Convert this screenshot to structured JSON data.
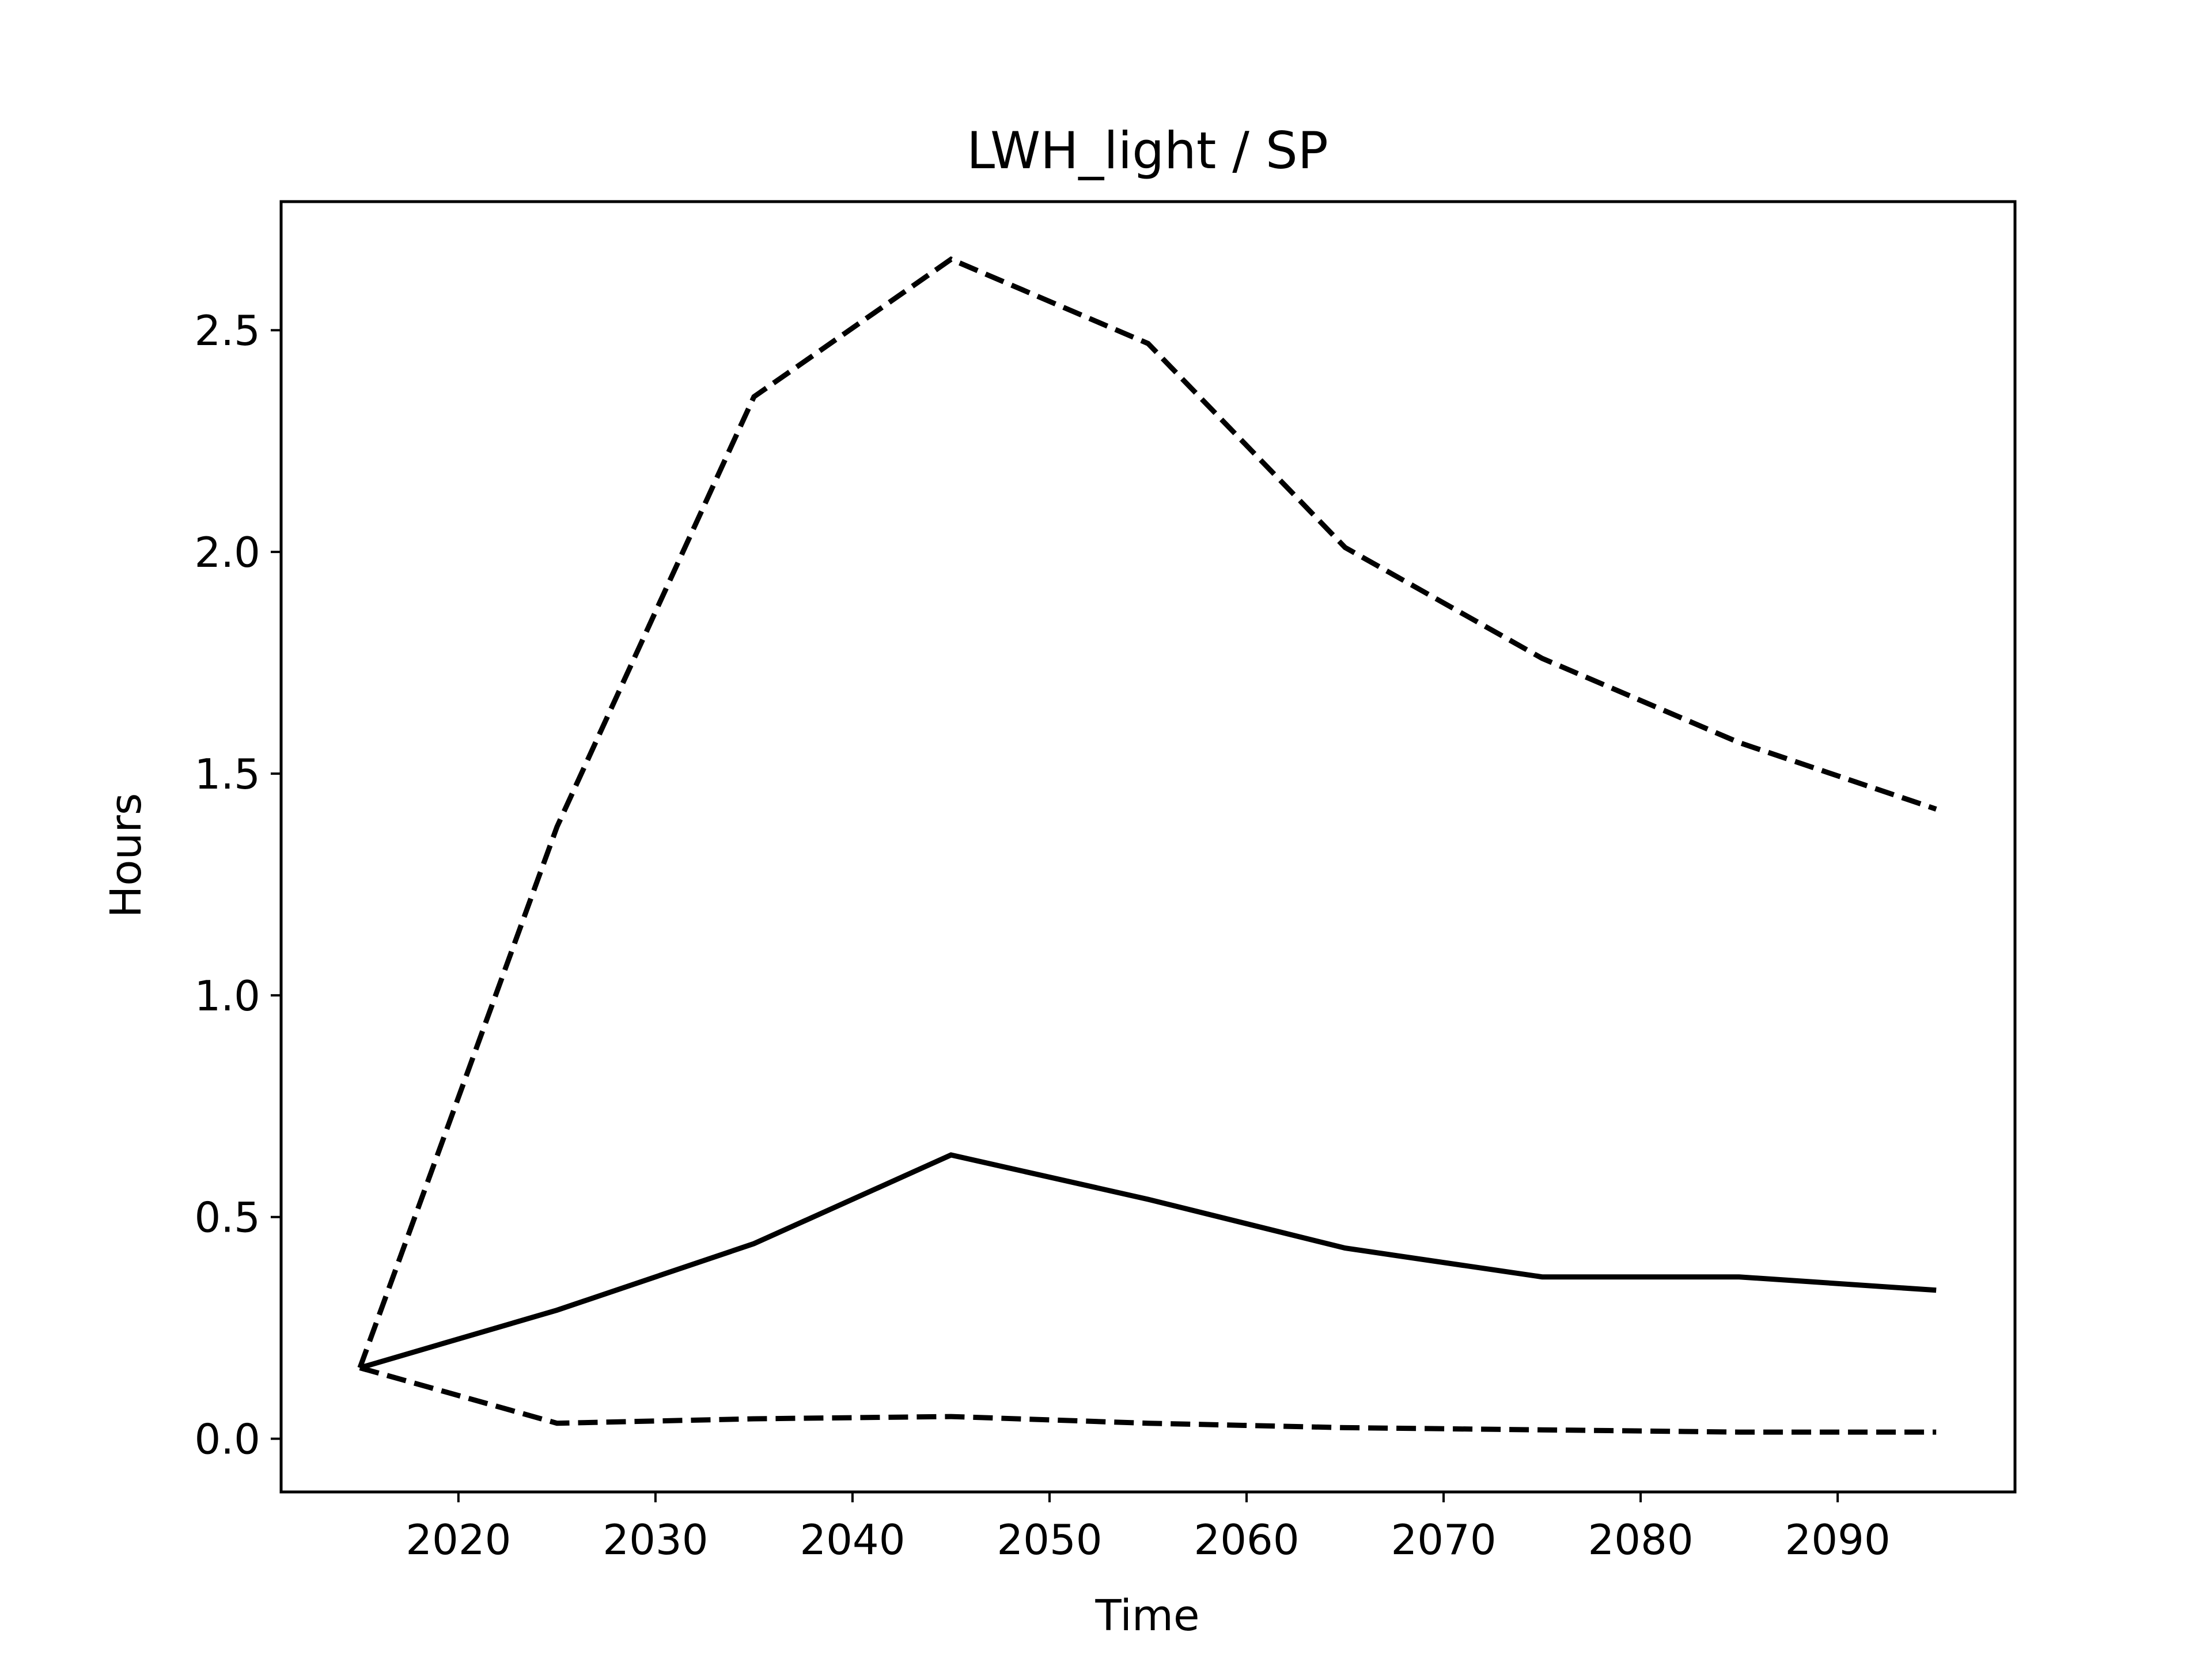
{
  "chart_data": {
    "type": "line",
    "title": "LWH_light / SP",
    "xlabel": "Time",
    "ylabel": "Hours",
    "xlim": [
      2011,
      2099
    ],
    "ylim": [
      -0.12,
      2.79
    ],
    "xticks": [
      2020,
      2030,
      2040,
      2050,
      2060,
      2070,
      2080,
      2090
    ],
    "yticks": [
      0.0,
      0.5,
      1.0,
      1.5,
      2.0,
      2.5
    ],
    "ytick_labels": [
      "0.0",
      "0.5",
      "1.0",
      "1.5",
      "2.0",
      "2.5"
    ],
    "grid": false,
    "legend": "none",
    "x": [
      2015,
      2025,
      2035,
      2045,
      2055,
      2065,
      2075,
      2085,
      2095
    ],
    "series": [
      {
        "style": "dashed",
        "color": "#000000",
        "values": [
          0.16,
          1.38,
          2.35,
          2.66,
          2.47,
          2.01,
          1.76,
          1.57,
          1.42
        ]
      },
      {
        "style": "solid",
        "color": "#000000",
        "values": [
          0.16,
          0.29,
          0.44,
          0.64,
          0.54,
          0.43,
          0.365,
          0.365,
          0.335
        ]
      },
      {
        "style": "dashed",
        "color": "#000000",
        "values": [
          0.16,
          0.035,
          0.045,
          0.05,
          0.035,
          0.025,
          0.02,
          0.015,
          0.015
        ]
      }
    ]
  }
}
